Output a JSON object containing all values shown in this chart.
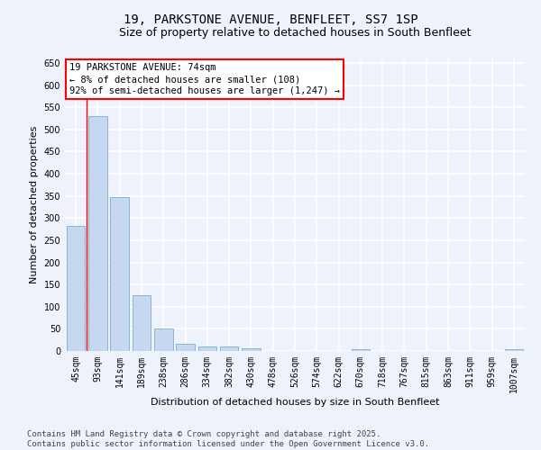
{
  "title_line1": "19, PARKSTONE AVENUE, BENFLEET, SS7 1SP",
  "title_line2": "Size of property relative to detached houses in South Benfleet",
  "xlabel": "Distribution of detached houses by size in South Benfleet",
  "ylabel": "Number of detached properties",
  "categories": [
    "45sqm",
    "93sqm",
    "141sqm",
    "189sqm",
    "238sqm",
    "286sqm",
    "334sqm",
    "382sqm",
    "430sqm",
    "478sqm",
    "526sqm",
    "574sqm",
    "622sqm",
    "670sqm",
    "718sqm",
    "767sqm",
    "815sqm",
    "863sqm",
    "911sqm",
    "959sqm",
    "1007sqm"
  ],
  "values": [
    283,
    530,
    348,
    125,
    50,
    16,
    11,
    11,
    7,
    0,
    0,
    0,
    0,
    5,
    0,
    0,
    0,
    0,
    0,
    0,
    5
  ],
  "bar_color": "#c5d8f0",
  "bar_edge_color": "#7aadd4",
  "ylim": [
    0,
    660
  ],
  "yticks": [
    0,
    50,
    100,
    150,
    200,
    250,
    300,
    350,
    400,
    450,
    500,
    550,
    600,
    650
  ],
  "annotation_box_text": "19 PARKSTONE AVENUE: 74sqm\n← 8% of detached houses are smaller (108)\n92% of semi-detached houses are larger (1,247) →",
  "vline_x": 0.5,
  "footer_line1": "Contains HM Land Registry data © Crown copyright and database right 2025.",
  "footer_line2": "Contains public sector information licensed under the Open Government Licence v3.0.",
  "background_color": "#eef2fb",
  "grid_color": "#ffffff",
  "title_fontsize": 10,
  "subtitle_fontsize": 9,
  "axis_label_fontsize": 8,
  "tick_fontsize": 7,
  "annotation_fontsize": 7.5,
  "footer_fontsize": 6.5
}
